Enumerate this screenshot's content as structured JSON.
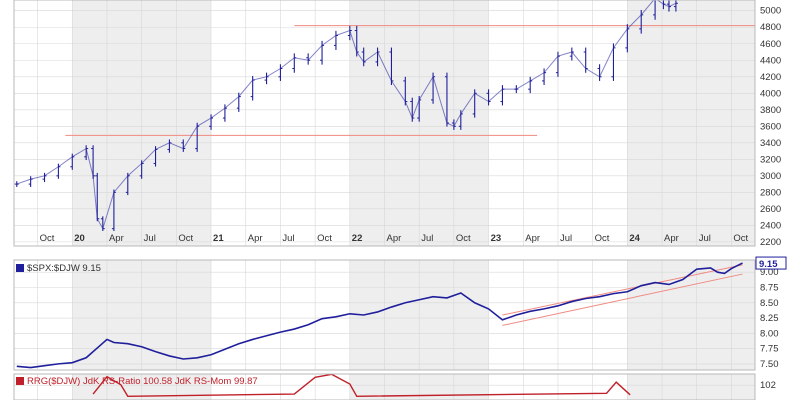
{
  "colors": {
    "price": "#1f1f9c",
    "ratio": "#1f1f9c",
    "rrg_ratio": "#c0202a",
    "rrg_mom": "#8b1a1a",
    "support": "#f08a80",
    "band_shade": "#eeeeee",
    "grid": "#d8d8d8",
    "text": "#333333"
  },
  "chart_data": [
    {
      "type": "line",
      "panel": "price",
      "style": "ohlc-bars",
      "x_ticks": [
        {
          "x": 2019.75,
          "label": "Oct"
        },
        {
          "x": 2020.0,
          "label": "20",
          "bold": true
        },
        {
          "x": 2020.25,
          "label": "Apr"
        },
        {
          "x": 2020.5,
          "label": "Jul"
        },
        {
          "x": 2020.75,
          "label": "Oct"
        },
        {
          "x": 2021.0,
          "label": "21",
          "bold": true
        },
        {
          "x": 2021.25,
          "label": "Apr"
        },
        {
          "x": 2021.5,
          "label": "Jul"
        },
        {
          "x": 2021.75,
          "label": "Oct"
        },
        {
          "x": 2022.0,
          "label": "22",
          "bold": true
        },
        {
          "x": 2022.25,
          "label": "Apr"
        },
        {
          "x": 2022.5,
          "label": "Jul"
        },
        {
          "x": 2022.75,
          "label": "Oct"
        },
        {
          "x": 2023.0,
          "label": "23",
          "bold": true
        },
        {
          "x": 2023.25,
          "label": "Apr"
        },
        {
          "x": 2023.5,
          "label": "Jul"
        },
        {
          "x": 2023.75,
          "label": "Oct"
        },
        {
          "x": 2024.0,
          "label": "24",
          "bold": true
        },
        {
          "x": 2024.25,
          "label": "Apr"
        },
        {
          "x": 2024.5,
          "label": "Jul"
        },
        {
          "x": 2024.75,
          "label": "Oct"
        }
      ],
      "y_ticks": [
        2200,
        2400,
        2600,
        2800,
        3000,
        3200,
        3400,
        3600,
        3800,
        4000,
        4200,
        4400,
        4600,
        4800,
        5000
      ],
      "y_tick_labels": [
        "2200",
        "2400",
        "2600",
        "2800",
        "3000",
        "3200",
        "3400",
        "3600",
        "3800",
        "4000",
        "4200",
        "4400",
        "4600",
        "4800",
        "5000"
      ],
      "xlim": [
        2019.58,
        2024.92
      ],
      "ylim": [
        2150,
        5130
      ],
      "x": [
        2019.6,
        2019.7,
        2019.8,
        2019.9,
        2020.0,
        2020.1,
        2020.15,
        2020.18,
        2020.22,
        2020.3,
        2020.4,
        2020.5,
        2020.6,
        2020.7,
        2020.8,
        2020.9,
        2021.0,
        2021.1,
        2021.2,
        2021.3,
        2021.4,
        2021.5,
        2021.6,
        2021.7,
        2021.8,
        2021.9,
        2022.0,
        2022.05,
        2022.1,
        2022.2,
        2022.3,
        2022.4,
        2022.45,
        2022.5,
        2022.6,
        2022.7,
        2022.75,
        2022.8,
        2022.9,
        2023.0,
        2023.1,
        2023.2,
        2023.3,
        2023.4,
        2023.5,
        2023.6,
        2023.7,
        2023.8,
        2023.9,
        2024.0,
        2024.1,
        2024.2,
        2024.26,
        2024.3,
        2024.35
      ],
      "values": [
        2900,
        2960,
        3000,
        3110,
        3230,
        3330,
        3000,
        2480,
        2360,
        2800,
        3000,
        3150,
        3320,
        3400,
        3330,
        3600,
        3700,
        3820,
        3960,
        4160,
        4200,
        4300,
        4430,
        4400,
        4580,
        4700,
        4760,
        4500,
        4380,
        4500,
        4150,
        3900,
        3700,
        3920,
        4200,
        3640,
        3600,
        3750,
        4000,
        3900,
        4050,
        4050,
        4150,
        4250,
        4450,
        4500,
        4300,
        4200,
        4550,
        4780,
        4950,
        5150,
        5080,
        5050,
        5090
      ],
      "support_lines": [
        {
          "y": 3490,
          "x0": 2019.95,
          "x1": 2023.35
        },
        {
          "y": 4820,
          "x0": 2021.6,
          "x1": 2024.92
        }
      ]
    },
    {
      "type": "line",
      "panel": "ratio",
      "legend": "$SPX:$DJW 9.15",
      "last_value": "9.15",
      "y_ticks": [
        7.5,
        7.75,
        8.0,
        8.25,
        8.5,
        8.75,
        9.0
      ],
      "y_tick_labels": [
        "7.50",
        "7.75",
        "8.00",
        "8.25",
        "8.50",
        "8.75",
        "9.00"
      ],
      "ylim": [
        7.4,
        9.2
      ],
      "x": [
        2019.6,
        2019.7,
        2019.8,
        2019.9,
        2020.0,
        2020.1,
        2020.2,
        2020.25,
        2020.3,
        2020.4,
        2020.5,
        2020.6,
        2020.7,
        2020.8,
        2020.9,
        2021.0,
        2021.1,
        2021.2,
        2021.3,
        2021.4,
        2021.5,
        2021.6,
        2021.7,
        2021.8,
        2021.9,
        2022.0,
        2022.1,
        2022.2,
        2022.3,
        2022.4,
        2022.5,
        2022.6,
        2022.7,
        2022.8,
        2022.9,
        2023.0,
        2023.1,
        2023.2,
        2023.3,
        2023.4,
        2023.5,
        2023.6,
        2023.7,
        2023.8,
        2023.9,
        2024.0,
        2024.1,
        2024.2,
        2024.3,
        2024.4,
        2024.5,
        2024.6,
        2024.65,
        2024.7,
        2024.75,
        2024.83
      ],
      "values": [
        7.46,
        7.44,
        7.47,
        7.5,
        7.52,
        7.6,
        7.8,
        7.9,
        7.85,
        7.83,
        7.78,
        7.7,
        7.63,
        7.58,
        7.6,
        7.65,
        7.74,
        7.83,
        7.9,
        7.96,
        8.02,
        8.07,
        8.14,
        8.24,
        8.27,
        8.32,
        8.3,
        8.35,
        8.43,
        8.5,
        8.55,
        8.6,
        8.58,
        8.66,
        8.5,
        8.4,
        8.22,
        8.3,
        8.36,
        8.4,
        8.45,
        8.52,
        8.57,
        8.6,
        8.65,
        8.68,
        8.78,
        8.83,
        8.8,
        8.88,
        9.05,
        9.07,
        9.0,
        8.98,
        9.06,
        9.15
      ],
      "channel": [
        {
          "x0": 2023.1,
          "y0": 8.3,
          "x1": 2024.83,
          "y1": 9.12
        },
        {
          "x0": 2023.1,
          "y0": 8.13,
          "x1": 2024.83,
          "y1": 8.97
        }
      ]
    },
    {
      "type": "line",
      "panel": "rrg",
      "legend": "RRG($DJW) JdK RS-Ratio 100.58 JdK RS-Mom 99.87",
      "y_ticks": [
        102
      ],
      "y_tick_labels": [
        "102"
      ],
      "ylim": [
        98,
        105
      ],
      "series": [
        {
          "name": "JdK RS-Ratio",
          "x": [
            2020.15,
            2020.25,
            2020.35,
            2020.4,
            2021.6,
            2021.75,
            2021.87,
            2022.0,
            2022.05,
            2023.85,
            2023.92,
            2024.02
          ],
          "values": [
            99.6,
            104.3,
            102.1,
            99.0,
            99.6,
            104.1,
            104.9,
            102.3,
            99.0,
            99.8,
            102.8,
            99.4
          ]
        }
      ]
    }
  ]
}
